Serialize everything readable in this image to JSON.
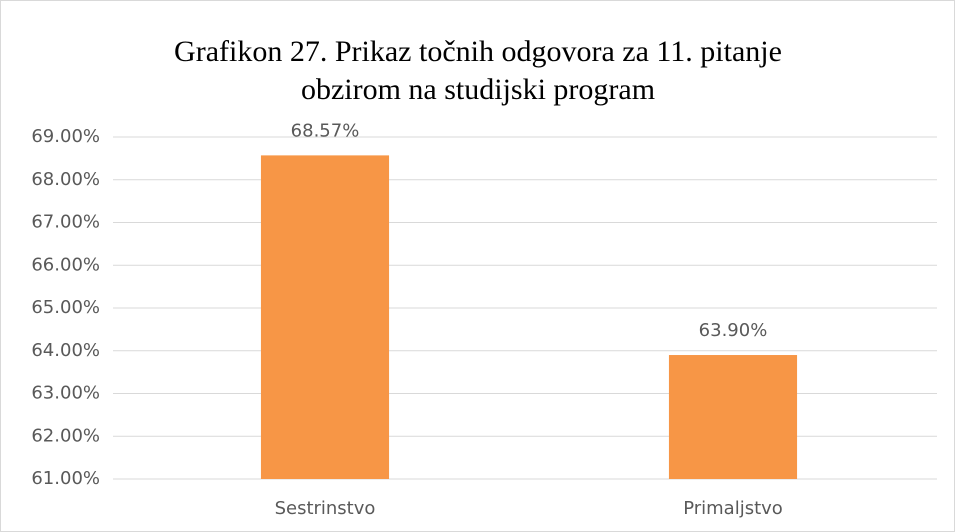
{
  "chart_data": {
    "type": "bar",
    "title": [
      "Grafikon 27. Prikaz točnih odgovora za 11. pitanje",
      "obzirom na studijski program"
    ],
    "categories": [
      "Sestrinstvo",
      "Primaljstvo"
    ],
    "values": [
      68.57,
      63.9
    ],
    "value_labels": [
      "68.57%",
      "63.90%"
    ],
    "color": "#f79646",
    "ylim": [
      61,
      69
    ],
    "yticks": [
      {
        "value": 61,
        "label": "61.00%"
      },
      {
        "value": 62,
        "label": "62.00%"
      },
      {
        "value": 63,
        "label": "63.00%"
      },
      {
        "value": 64,
        "label": "64.00%"
      },
      {
        "value": 65,
        "label": "65.00%"
      },
      {
        "value": 66,
        "label": "66.00%"
      },
      {
        "value": 67,
        "label": "67.00%"
      },
      {
        "value": 68,
        "label": "68.00%"
      },
      {
        "value": 69,
        "label": "69.00%"
      }
    ],
    "grid": true
  }
}
